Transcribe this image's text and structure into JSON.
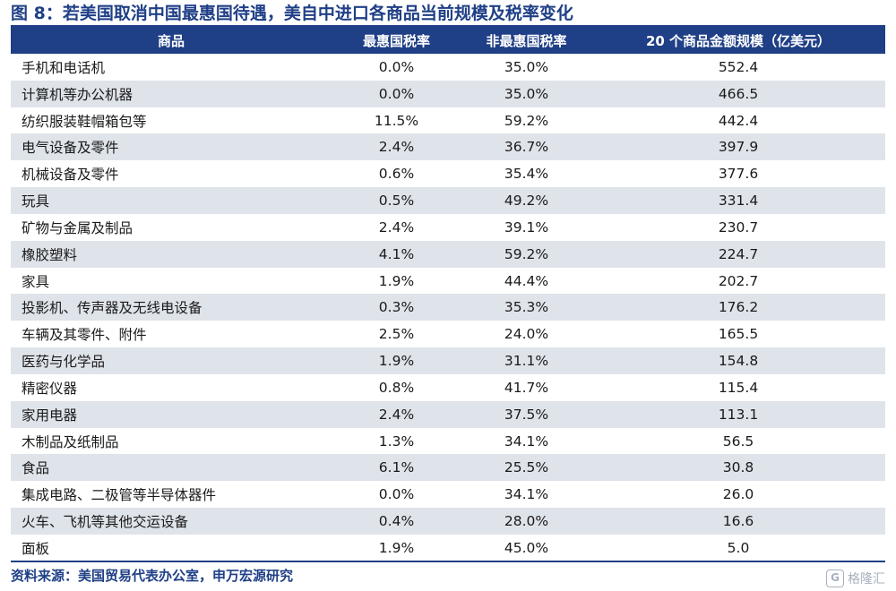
{
  "title": "图 8：若美国取消中国最惠国待遇，美自中进口各商品当前规模及税率变化",
  "table": {
    "headers": [
      "商品",
      "最惠国税率",
      "非最惠国税率",
      "20 个商品金额规模（亿美元）"
    ],
    "rows": [
      [
        "手机和电话机",
        "0.0%",
        "35.0%",
        "552.4"
      ],
      [
        "计算机等办公机器",
        "0.0%",
        "35.0%",
        "466.5"
      ],
      [
        "纺织服装鞋帽箱包等",
        "11.5%",
        "59.2%",
        "442.4"
      ],
      [
        "电气设备及零件",
        "2.4%",
        "36.7%",
        "397.9"
      ],
      [
        "机械设备及零件",
        "0.6%",
        "35.4%",
        "377.6"
      ],
      [
        "玩具",
        "0.5%",
        "49.2%",
        "331.4"
      ],
      [
        "矿物与金属及制品",
        "2.4%",
        "39.1%",
        "230.7"
      ],
      [
        "橡胶塑料",
        "4.1%",
        "59.2%",
        "224.7"
      ],
      [
        "家具",
        "1.9%",
        "44.4%",
        "202.7"
      ],
      [
        "投影机、传声器及无线电设备",
        "0.3%",
        "35.3%",
        "176.2"
      ],
      [
        "车辆及其零件、附件",
        "2.5%",
        "24.0%",
        "165.5"
      ],
      [
        "医药与化学品",
        "1.9%",
        "31.1%",
        "154.8"
      ],
      [
        "精密仪器",
        "0.8%",
        "41.7%",
        "115.4"
      ],
      [
        "家用电器",
        "2.4%",
        "37.5%",
        "113.1"
      ],
      [
        "木制品及纸制品",
        "1.3%",
        "34.1%",
        "56.5"
      ],
      [
        "食品",
        "6.1%",
        "25.5%",
        "30.8"
      ],
      [
        "集成电路、二极管等半导体器件",
        "0.0%",
        "34.1%",
        "26.0"
      ],
      [
        "火车、飞机等其他交运设备",
        "0.4%",
        "28.0%",
        "16.6"
      ],
      [
        "面板",
        "1.9%",
        "45.0%",
        "5.0"
      ]
    ]
  },
  "source": "资料来源：美国贸易代表办公室，申万宏源研究",
  "watermark": {
    "logo_glyph": "G",
    "text": "格隆汇"
  },
  "colors": {
    "brand_blue": "#1f3f86",
    "stripe_gray": "#dfe3ea",
    "watermark_gray": "#9aa3b2"
  }
}
